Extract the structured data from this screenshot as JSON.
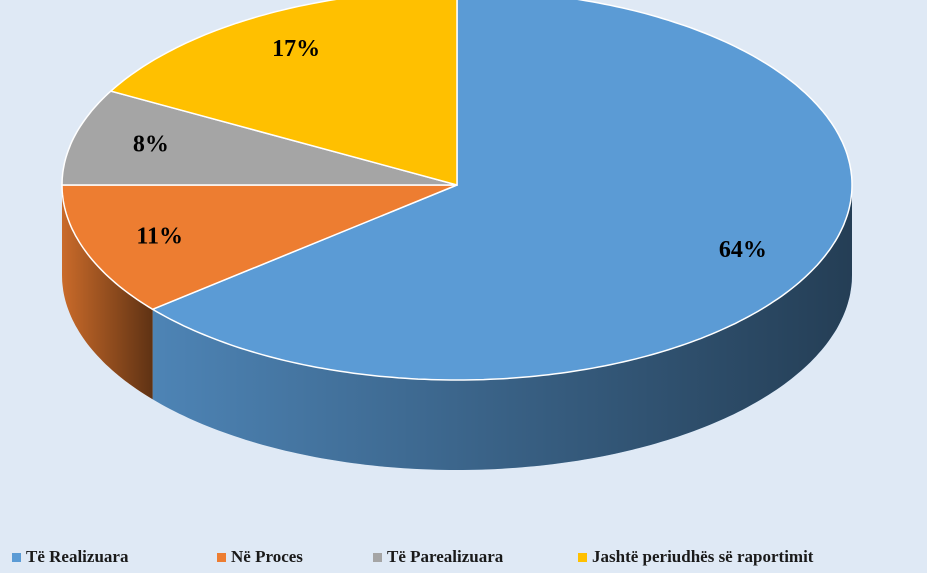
{
  "chart_data": {
    "type": "pie",
    "categories": [
      "Të Realizuara",
      "Në Proces",
      "Të Parealizuara",
      "Jashtë periudhës së raportimit"
    ],
    "values": [
      64,
      11,
      8,
      17
    ],
    "value_labels": [
      "64%",
      "11%",
      "8%",
      "17%"
    ],
    "colors": [
      "#5b9bd5",
      "#ed7d31",
      "#a5a5a5",
      "#ffc000"
    ],
    "legend": "bottom"
  }
}
